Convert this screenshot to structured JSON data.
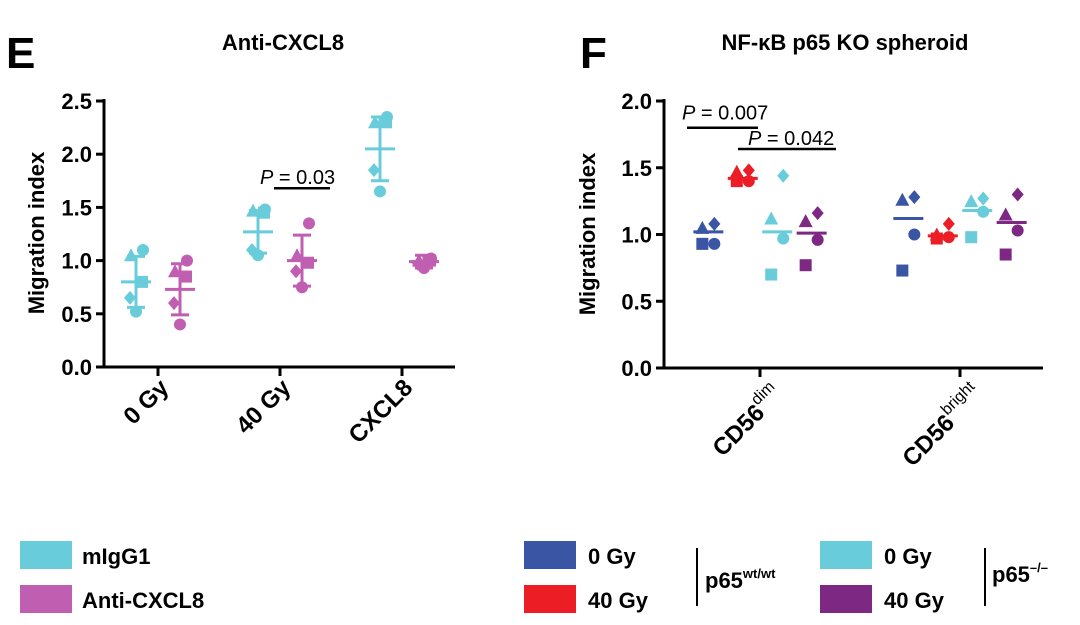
{
  "colors": {
    "mIgG1": "#69CCDA",
    "anti_cxcl8": "#C05EB2",
    "wt_0gy": "#3A55A4",
    "wt_40gy": "#EC1D24",
    "ko_0gy": "#69CCDA",
    "ko_40gy": "#7D2882"
  },
  "chart_data": [
    {
      "panel": "E",
      "type": "scatter",
      "title": "Anti-CXCL8",
      "xlabel": "",
      "ylabel": "Migration index",
      "ylim": [
        0,
        2.5
      ],
      "yticks": [
        "0.0",
        "0.5",
        "1.0",
        "1.5",
        "2.0",
        "2.5"
      ],
      "categories": [
        "0 Gy",
        "40 Gy",
        "CXCL8"
      ],
      "series": [
        {
          "name": "mIgG1",
          "color": "#69CCDA",
          "groups": [
            {
              "category": "0 Gy",
              "mean": 0.8,
              "sd": 0.24,
              "points": [
                1.1,
                1.05,
                0.8,
                0.65,
                0.52
              ]
            },
            {
              "category": "40 Gy",
              "mean": 1.27,
              "sd": 0.2,
              "points": [
                1.48,
                1.47,
                1.45,
                1.1,
                1.05
              ]
            },
            {
              "category": "CXCL8",
              "mean": 2.05,
              "sd": 0.3,
              "points": [
                2.35,
                2.3,
                2.3,
                1.85,
                1.65
              ]
            }
          ]
        },
        {
          "name": "Anti-CXCL8",
          "color": "#C05EB2",
          "groups": [
            {
              "category": "0 Gy",
              "mean": 0.73,
              "sd": 0.24,
              "points": [
                1.0,
                0.9,
                0.85,
                0.6,
                0.4
              ]
            },
            {
              "category": "40 Gy",
              "mean": 1.0,
              "sd": 0.24,
              "points": [
                1.35,
                1.05,
                0.98,
                0.9,
                0.75
              ]
            },
            {
              "category": "CXCL8",
              "mean": 0.99,
              "sd": 0.06,
              "points": [
                1.02,
                1.0,
                1.0,
                0.97,
                0.93
              ]
            }
          ]
        }
      ],
      "annotations": [
        {
          "text": "P = 0.03",
          "p_italic": "P",
          "rest": " = 0.03",
          "between": [
            "40 Gy:mIgG1",
            "40 Gy:Anti-CXCL8"
          ],
          "y": 1.68
        }
      ]
    },
    {
      "panel": "F",
      "type": "scatter",
      "title": "NF-κB p65 KO spheroid",
      "xlabel": "",
      "ylabel": "Migration index",
      "ylim": [
        0,
        2.0
      ],
      "yticks": [
        "0.0",
        "0.5",
        "1.0",
        "1.5",
        "2.0"
      ],
      "categories": [
        {
          "base": "CD56",
          "sup": "dim"
        },
        {
          "base": "CD56",
          "sup": "bright"
        }
      ],
      "series": [
        {
          "name": "0 Gy p65wt/wt",
          "color": "#3A55A4",
          "groups": [
            {
              "category": "CD56dim",
              "mean": 1.02,
              "points": [
                1.08,
                1.05,
                0.93,
                0.93
              ]
            },
            {
              "category": "CD56bright",
              "mean": 1.12,
              "points": [
                1.28,
                1.26,
                1.0,
                0.73
              ]
            }
          ]
        },
        {
          "name": "40 Gy p65wt/wt",
          "color": "#EC1D24",
          "groups": [
            {
              "category": "CD56dim",
              "mean": 1.42,
              "points": [
                1.48,
                1.47,
                1.4,
                1.4
              ]
            },
            {
              "category": "CD56bright",
              "mean": 0.99,
              "points": [
                1.08,
                1.0,
                0.98,
                0.97
              ]
            }
          ]
        },
        {
          "name": "0 Gy p65-/-",
          "color": "#69CCDA",
          "groups": [
            {
              "category": "CD56dim",
              "mean": 1.02,
              "points": [
                1.44,
                1.12,
                0.97,
                0.7
              ]
            },
            {
              "category": "CD56bright",
              "mean": 1.18,
              "points": [
                1.27,
                1.25,
                1.17,
                0.98
              ]
            }
          ]
        },
        {
          "name": "40 Gy p65-/-",
          "color": "#7D2882",
          "groups": [
            {
              "category": "CD56dim",
              "mean": 1.01,
              "points": [
                1.16,
                1.1,
                0.96,
                0.77
              ]
            },
            {
              "category": "CD56bright",
              "mean": 1.09,
              "points": [
                1.3,
                1.15,
                1.03,
                0.85
              ]
            }
          ]
        }
      ],
      "annotations": [
        {
          "text": "P = 0.007",
          "p_italic": "P",
          "rest": " = 0.007",
          "y": 1.8
        },
        {
          "text": "P = 0.042",
          "p_italic": "P",
          "rest": " = 0.042",
          "y": 1.64
        }
      ]
    }
  ],
  "legend_e": [
    {
      "label": "mIgG1",
      "color": "#69CCDA"
    },
    {
      "label": "Anti-CXCL8",
      "color": "#C05EB2"
    }
  ],
  "legend_f": {
    "wt_items": [
      {
        "label": "0 Gy",
        "color": "#3A55A4"
      },
      {
        "label": "40 Gy",
        "color": "#EC1D24"
      }
    ],
    "wt_group": {
      "base": "p65",
      "sup": "wt/wt"
    },
    "ko_items": [
      {
        "label": "0 Gy",
        "color": "#69CCDA"
      },
      {
        "label": "40 Gy",
        "color": "#7D2882"
      }
    ],
    "ko_group": {
      "base": "p65",
      "sup": "–/–"
    }
  },
  "panel_labels": {
    "e": "E",
    "f": "F"
  }
}
